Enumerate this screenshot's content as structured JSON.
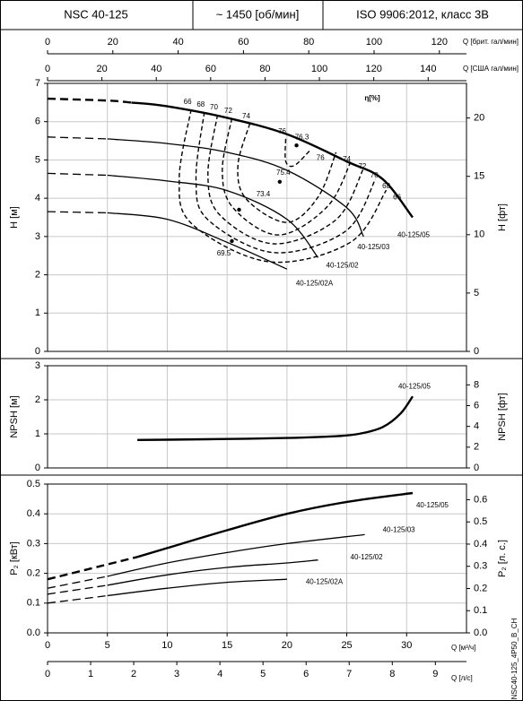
{
  "header": {
    "model": "NSC 40-125",
    "speed": "~ 1450 [об/мин]",
    "standard": "ISO 9906:2012, класс 3B"
  },
  "code": "NSC40-125_4P50_B_CH",
  "flow_axes": [
    {
      "label": "Q [брит. гал/мин]",
      "lim": [
        0,
        128.3
      ],
      "ticks": [
        0,
        20,
        40,
        60,
        80,
        100,
        120
      ],
      "position": "top"
    },
    {
      "label": "Q [США гал/мин]",
      "lim": [
        0,
        154.1
      ],
      "ticks": [
        0,
        20,
        40,
        60,
        80,
        100,
        120,
        140
      ],
      "position": "top"
    },
    {
      "label": "Q [л/с]",
      "lim": [
        0,
        9.722
      ],
      "ticks": [
        0,
        1,
        2,
        3,
        4,
        5,
        6,
        7,
        8,
        9
      ],
      "position": "bottom"
    }
  ],
  "chart_data": [
    {
      "type": "line",
      "ylabel": "H [м]",
      "y2label": "H [фт]",
      "efficiency_title": "η[%]",
      "grid": true,
      "xlim": [
        0,
        35
      ],
      "xticks": [
        0,
        5,
        10,
        15,
        20,
        25,
        30
      ],
      "ylim": [
        0,
        7
      ],
      "yticks": [
        0,
        1,
        2,
        3,
        4,
        5,
        6,
        7
      ],
      "y2lim": [
        0,
        22.966
      ],
      "y2ticks": [
        0,
        5,
        10,
        15,
        20
      ],
      "series": [
        {
          "name": "40-125/05",
          "color": "#000000",
          "dashed_until": 7,
          "x": [
            0,
            5,
            7,
            10,
            15,
            20,
            25,
            28,
            30.5
          ],
          "values": [
            6.6,
            6.55,
            6.5,
            6.4,
            6.1,
            5.67,
            4.96,
            4.5,
            3.5
          ]
        },
        {
          "name": "40-125/03",
          "color": "#000000",
          "dashed_until": 5,
          "x": [
            0,
            5,
            10,
            15,
            20,
            25,
            26.4
          ],
          "values": [
            5.6,
            5.55,
            5.43,
            5.2,
            4.73,
            3.75,
            3.0
          ]
        },
        {
          "name": "40-125/02",
          "color": "#000000",
          "dashed_until": 5,
          "x": [
            0,
            5,
            10,
            15,
            20,
            22.6
          ],
          "values": [
            4.65,
            4.6,
            4.45,
            4.2,
            3.45,
            2.45
          ]
        },
        {
          "name": "40-125/02A",
          "color": "#000000",
          "dashed_until": 5,
          "x": [
            0,
            5,
            10,
            15,
            20
          ],
          "values": [
            3.65,
            3.62,
            3.45,
            2.85,
            2.15
          ]
        }
      ],
      "efficiency_curves": [
        {
          "label": "66",
          "x": [
            12.0,
            11.0,
            12.1,
            18.5,
            25.3,
            28.3
          ],
          "values": [
            6.32,
            4.5,
            3.32,
            2.34,
            2.85,
            4.21
          ]
        },
        {
          "label": "68",
          "x": [
            13.1,
            12.4,
            13.4,
            18.9,
            24.9,
            27.4
          ],
          "values": [
            6.25,
            4.5,
            3.44,
            2.58,
            3.14,
            4.5
          ]
        },
        {
          "label": "70",
          "x": [
            14.2,
            13.4,
            14.4,
            18.9,
            24.1,
            26.4
          ],
          "values": [
            6.18,
            4.61,
            3.56,
            2.81,
            3.44,
            4.78
          ]
        },
        {
          "label": "72",
          "x": [
            15.4,
            14.6,
            15.5,
            19.3,
            23.4,
            25.4
          ],
          "values": [
            6.09,
            4.73,
            3.75,
            3.04,
            3.79,
            5.01
          ]
        },
        {
          "label": "74",
          "x": [
            16.9,
            15.9,
            16.6,
            20.0,
            22.6,
            24.1
          ],
          "values": [
            5.95,
            4.85,
            3.98,
            3.37,
            4.03,
            5.2
          ]
        },
        {
          "label": "76",
          "x": [
            19.9,
            19.9,
            20.6,
            21.9
          ],
          "values": [
            5.55,
            4.96,
            4.85,
            5.24
          ]
        }
      ],
      "efficiency_points": [
        {
          "label": "76.3",
          "x": 20.8,
          "value": 5.38
        },
        {
          "label": "75.4",
          "x": 19.4,
          "value": 4.43
        },
        {
          "label": "73.4",
          "x": 16.0,
          "value": 3.7
        },
        {
          "label": "69.5",
          "x": 15.4,
          "value": 2.88
        }
      ]
    },
    {
      "type": "line",
      "ylabel": "NPSH [м]",
      "y2label": "NPSH [фт]",
      "grid": true,
      "xlim": [
        0,
        35
      ],
      "xticks": [
        0,
        5,
        10,
        15,
        20,
        25,
        30
      ],
      "ylim": [
        0,
        3
      ],
      "yticks": [
        0,
        1,
        2,
        3
      ],
      "y2lim": [
        0,
        9.843
      ],
      "y2ticks": [
        0,
        2,
        4,
        6,
        8
      ],
      "series": [
        {
          "name": "40-125/05",
          "color": "#000000",
          "x": [
            7.5,
            10,
            15,
            20,
            24,
            26,
            28,
            29.5,
            30.5
          ],
          "values": [
            0.82,
            0.83,
            0.85,
            0.88,
            0.93,
            1.0,
            1.2,
            1.6,
            2.1
          ]
        }
      ]
    },
    {
      "type": "line",
      "ylabel": "P₂ [кВт]",
      "y2label": "P₂ [л. с.]",
      "xlabel": "Q [м³/ч]",
      "grid": true,
      "xlim": [
        0,
        35
      ],
      "xticks": [
        0,
        5,
        10,
        15,
        20,
        25,
        30
      ],
      "ylim": [
        0,
        0.5
      ],
      "yticks": [
        {
          "value": 0,
          "label": "0.0"
        },
        0.1,
        0.2,
        0.3,
        0.4,
        0.5
      ],
      "y2lim": [
        0,
        0.6705
      ],
      "y2ticks": [
        {
          "value": 0,
          "label": "0.0"
        },
        0.1,
        0.2,
        0.3,
        0.4,
        0.5,
        0.6
      ],
      "series": [
        {
          "name": "40-125/05",
          "color": "#000000",
          "dashed_until": 7.5,
          "x": [
            0,
            5,
            7.5,
            10,
            15,
            20,
            25,
            30.5
          ],
          "values": [
            0.18,
            0.23,
            0.255,
            0.285,
            0.345,
            0.4,
            0.44,
            0.47
          ]
        },
        {
          "name": "40-125/03",
          "color": "#000000",
          "dashed_until": 5,
          "x": [
            0,
            5,
            10,
            15,
            20,
            26.5
          ],
          "values": [
            0.15,
            0.19,
            0.235,
            0.27,
            0.3,
            0.33
          ]
        },
        {
          "name": "40-125/02",
          "color": "#000000",
          "dashed_until": 5,
          "x": [
            0,
            5,
            10,
            15,
            20,
            22.6
          ],
          "values": [
            0.13,
            0.16,
            0.195,
            0.22,
            0.235,
            0.245
          ]
        },
        {
          "name": "40-125/02A",
          "color": "#000000",
          "dashed_until": 5,
          "x": [
            0,
            5,
            10,
            15,
            20
          ],
          "values": [
            0.1,
            0.125,
            0.15,
            0.17,
            0.18
          ]
        }
      ]
    }
  ]
}
